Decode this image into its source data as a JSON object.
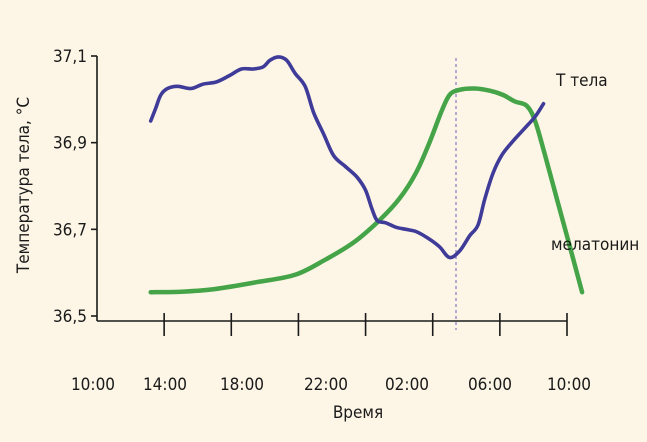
{
  "chart_data": {
    "type": "line",
    "title": "",
    "xlabel": "Время",
    "ylabel": "Температура тела, °С",
    "ylim": [
      36.5,
      37.1
    ],
    "x_ticks": [
      "10:00",
      "14:00",
      "18:00",
      "22:00",
      "02:00",
      "06:00",
      "10:00"
    ],
    "x_tick_hours": [
      0,
      4,
      8,
      12,
      16,
      20,
      24
    ],
    "y_ticks": [
      "36,5",
      "36,7",
      "36,9",
      "37,1"
    ],
    "y_tick_values": [
      36.5,
      36.7,
      36.9,
      37.1
    ],
    "grid": false,
    "legend": "direct-labels",
    "dashed_marker_hour": 18.5,
    "series": [
      {
        "name": "Т тела",
        "color": "#3f3b98",
        "points": [
          [
            3.2,
            36.95
          ],
          [
            3.5,
            36.98
          ],
          [
            3.8,
            37.01
          ],
          [
            4.2,
            37.025
          ],
          [
            4.8,
            37.03
          ],
          [
            5.6,
            37.025
          ],
          [
            6.3,
            37.035
          ],
          [
            7.1,
            37.04
          ],
          [
            7.9,
            37.055
          ],
          [
            8.6,
            37.07
          ],
          [
            9.3,
            37.07
          ],
          [
            9.9,
            37.075
          ],
          [
            10.3,
            37.09
          ],
          [
            10.8,
            37.098
          ],
          [
            11.3,
            37.09
          ],
          [
            11.8,
            37.06
          ],
          [
            12.4,
            37.03
          ],
          [
            12.9,
            36.97
          ],
          [
            13.5,
            36.92
          ],
          [
            14.1,
            36.87
          ],
          [
            14.8,
            36.845
          ],
          [
            15.5,
            36.82
          ],
          [
            16.0,
            36.79
          ],
          [
            16.4,
            36.745
          ],
          [
            16.7,
            36.72
          ],
          [
            17.2,
            36.715
          ],
          [
            17.8,
            36.705
          ],
          [
            18.4,
            36.7
          ],
          [
            19.0,
            36.695
          ],
          [
            19.7,
            36.68
          ],
          [
            20.4,
            36.66
          ],
          [
            21.0,
            36.635
          ],
          [
            21.6,
            36.65
          ],
          [
            22.2,
            36.685
          ],
          [
            22.7,
            36.71
          ],
          [
            23.1,
            36.77
          ],
          [
            23.6,
            36.83
          ],
          [
            24.1,
            36.87
          ],
          [
            24.7,
            36.9
          ],
          [
            25.4,
            36.93
          ],
          [
            26.1,
            36.96
          ],
          [
            26.6,
            36.99
          ]
        ]
      },
      {
        "name": "мелатонин",
        "color": "#44a447",
        "points": [
          [
            3.2,
            36.555
          ],
          [
            5.0,
            36.556
          ],
          [
            7.0,
            36.562
          ],
          [
            9.5,
            36.578
          ],
          [
            11.8,
            36.595
          ],
          [
            13.6,
            36.63
          ],
          [
            15.3,
            36.67
          ],
          [
            16.8,
            36.72
          ],
          [
            18.0,
            36.77
          ],
          [
            19.0,
            36.83
          ],
          [
            19.8,
            36.9
          ],
          [
            20.5,
            36.97
          ],
          [
            21.0,
            37.01
          ],
          [
            21.6,
            37.022
          ],
          [
            22.5,
            37.025
          ],
          [
            23.4,
            37.02
          ],
          [
            24.2,
            37.01
          ],
          [
            24.9,
            36.995
          ],
          [
            25.6,
            36.985
          ],
          [
            26.1,
            36.95
          ],
          [
            26.7,
            36.87
          ],
          [
            27.4,
            36.77
          ],
          [
            28.1,
            36.67
          ],
          [
            28.9,
            36.555
          ]
        ]
      }
    ]
  }
}
